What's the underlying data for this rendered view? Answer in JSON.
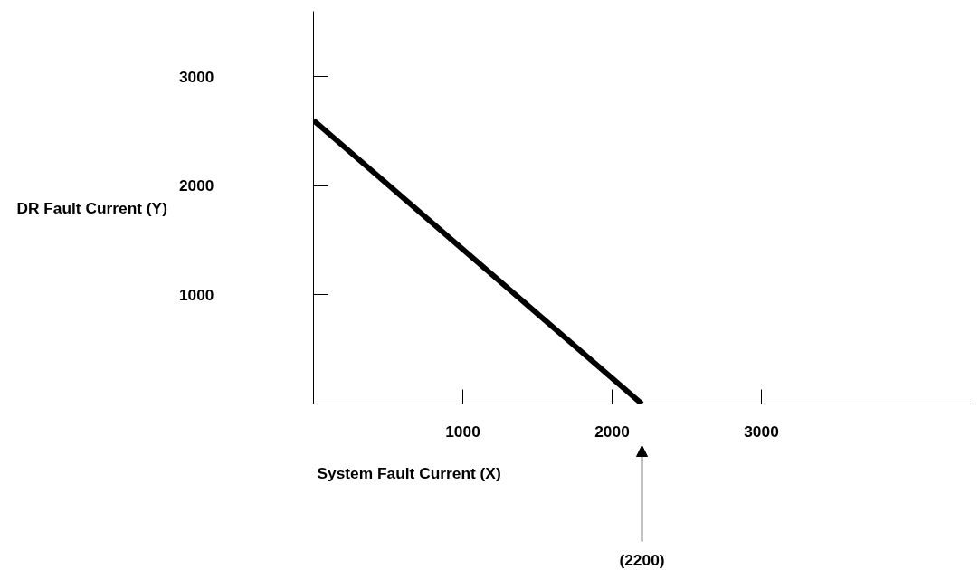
{
  "chart_data": {
    "type": "line",
    "xlabel": "System Fault Current (X)",
    "ylabel": "DR Fault Current (Y)",
    "x": [
      0,
      2200
    ],
    "series": [
      {
        "color": "#000000",
        "values": [
          2600,
          0
        ]
      }
    ],
    "xlim": [
      0,
      4400
    ],
    "ylim": [
      0,
      3600
    ],
    "xticks": [
      1000,
      2000,
      3000
    ],
    "yticks": [
      1000,
      2000,
      3000
    ],
    "grid": false,
    "marker": "none",
    "line_style": "solid",
    "annotations": [
      "(2200)"
    ]
  }
}
